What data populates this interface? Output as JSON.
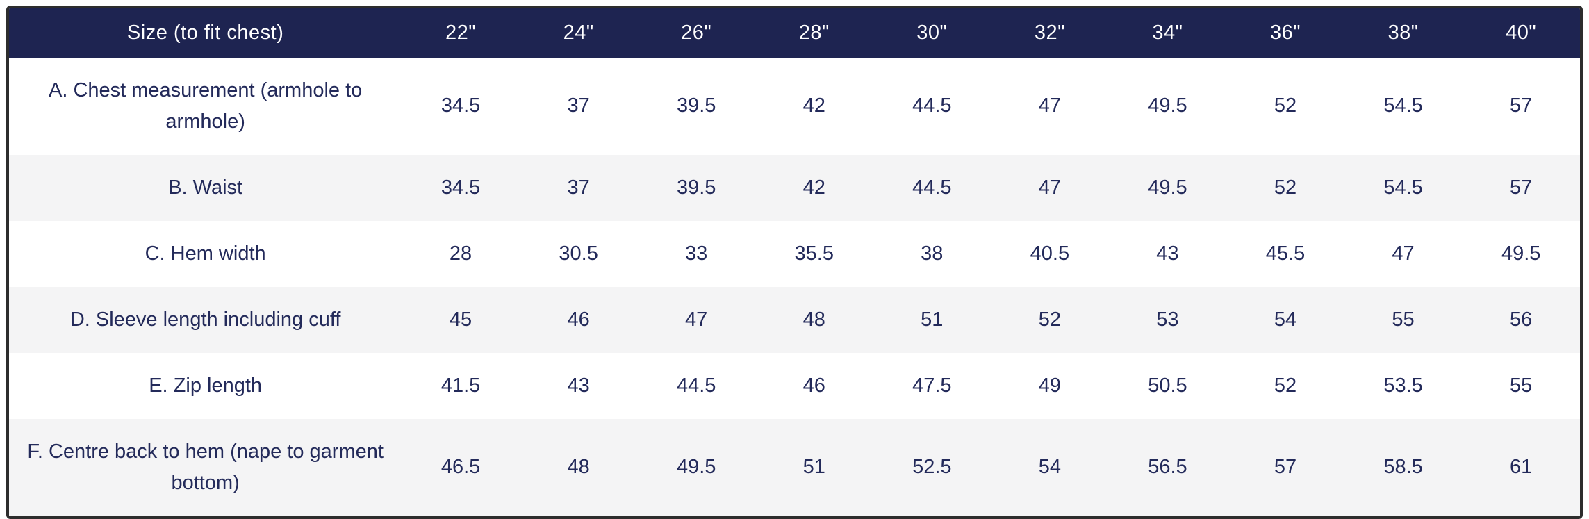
{
  "colors": {
    "header_bg": "#1e2451",
    "header_text": "#ffffff",
    "body_text": "#232a5a",
    "row_alt_bg": "#f4f4f5",
    "row_bg": "#ffffff",
    "outer_border": "#2d2d2d"
  },
  "table": {
    "header": {
      "label_column": "Size (to fit chest)",
      "size_columns": [
        "22\"",
        "24\"",
        "26\"",
        "28\"",
        "30\"",
        "32\"",
        "34\"",
        "36\"",
        "38\"",
        "40\""
      ]
    },
    "rows": [
      {
        "label": "A. Chest measurement (armhole to armhole)",
        "values": [
          "34.5",
          "37",
          "39.5",
          "42",
          "44.5",
          "47",
          "49.5",
          "52",
          "54.5",
          "57"
        ]
      },
      {
        "label": "B. Waist",
        "values": [
          "34.5",
          "37",
          "39.5",
          "42",
          "44.5",
          "47",
          "49.5",
          "52",
          "54.5",
          "57"
        ]
      },
      {
        "label": "C. Hem width",
        "values": [
          "28",
          "30.5",
          "33",
          "35.5",
          "38",
          "40.5",
          "43",
          "45.5",
          "47",
          "49.5"
        ]
      },
      {
        "label": "D. Sleeve length including cuff",
        "values": [
          "45",
          "46",
          "47",
          "48",
          "51",
          "52",
          "53",
          "54",
          "55",
          "56"
        ]
      },
      {
        "label": "E. Zip length",
        "values": [
          "41.5",
          "43",
          "44.5",
          "46",
          "47.5",
          "49",
          "50.5",
          "52",
          "53.5",
          "55"
        ]
      },
      {
        "label": "F. Centre back to hem (nape to garment bottom)",
        "values": [
          "46.5",
          "48",
          "49.5",
          "51",
          "52.5",
          "54",
          "56.5",
          "57",
          "58.5",
          "61"
        ]
      }
    ]
  },
  "chart_data": {
    "type": "table",
    "title": "Size (to fit chest)",
    "columns": [
      "22\"",
      "24\"",
      "26\"",
      "28\"",
      "30\"",
      "32\"",
      "34\"",
      "36\"",
      "38\"",
      "40\""
    ],
    "rows": [
      {
        "label": "A. Chest measurement (armhole to armhole)",
        "values": [
          34.5,
          37,
          39.5,
          42,
          44.5,
          47,
          49.5,
          52,
          54.5,
          57
        ]
      },
      {
        "label": "B. Waist",
        "values": [
          34.5,
          37,
          39.5,
          42,
          44.5,
          47,
          49.5,
          52,
          54.5,
          57
        ]
      },
      {
        "label": "C. Hem width",
        "values": [
          28,
          30.5,
          33,
          35.5,
          38,
          40.5,
          43,
          45.5,
          47,
          49.5
        ]
      },
      {
        "label": "D. Sleeve length including cuff",
        "values": [
          45,
          46,
          47,
          48,
          51,
          52,
          53,
          54,
          55,
          56
        ]
      },
      {
        "label": "E. Zip length",
        "values": [
          41.5,
          43,
          44.5,
          46,
          47.5,
          49,
          50.5,
          52,
          53.5,
          55
        ]
      },
      {
        "label": "F. Centre back to hem (nape to garment bottom)",
        "values": [
          46.5,
          48,
          49.5,
          51,
          52.5,
          54,
          56.5,
          57,
          58.5,
          61
        ]
      }
    ],
    "layout": {
      "header_style": "dark navy band, white centered text",
      "row_striping": "white / light gray alternating starting white",
      "alignment": "all cells centered"
    }
  }
}
